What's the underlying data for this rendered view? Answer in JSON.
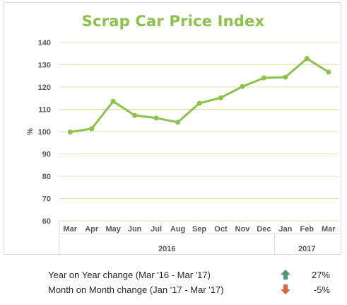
{
  "chart_data": {
    "type": "line",
    "title": "Scrap Car Price Index",
    "ylabel": "%",
    "xlabel": "",
    "categories": [
      "Mar",
      "Apr",
      "May",
      "Jun",
      "Jul",
      "Aug",
      "Sep",
      "Oct",
      "Nov",
      "Dec",
      "Jan",
      "Feb",
      "Mar"
    ],
    "groups": [
      {
        "label": "2016",
        "from": 0,
        "to": 9
      },
      {
        "label": "2017",
        "from": 10,
        "to": 12
      }
    ],
    "series": [
      {
        "values": [
          99.8,
          101.3,
          113.6,
          107.3,
          106.1,
          104.2,
          112.7,
          115.2,
          120.2,
          124.1,
          124.4,
          132.8,
          126.7
        ]
      }
    ],
    "ylim": [
      60,
      140
    ],
    "yticks": [
      60,
      70,
      80,
      90,
      100,
      110,
      120,
      130,
      140
    ],
    "grid": true,
    "legend": "none",
    "colors": {
      "line": "#8bc34a",
      "grid": "#d6e8b0",
      "title": "#8bc34a"
    }
  },
  "summary": {
    "rows": [
      {
        "label": "Year on Year change (Mar '16 - Mar '17)",
        "direction": "up",
        "value": "27%",
        "arrow_color": "#4a9a7a"
      },
      {
        "label": "Month on Month change (Jan '17 - Mar '17)",
        "direction": "down",
        "value": "-5%",
        "arrow_color": "#e0643a"
      }
    ]
  }
}
